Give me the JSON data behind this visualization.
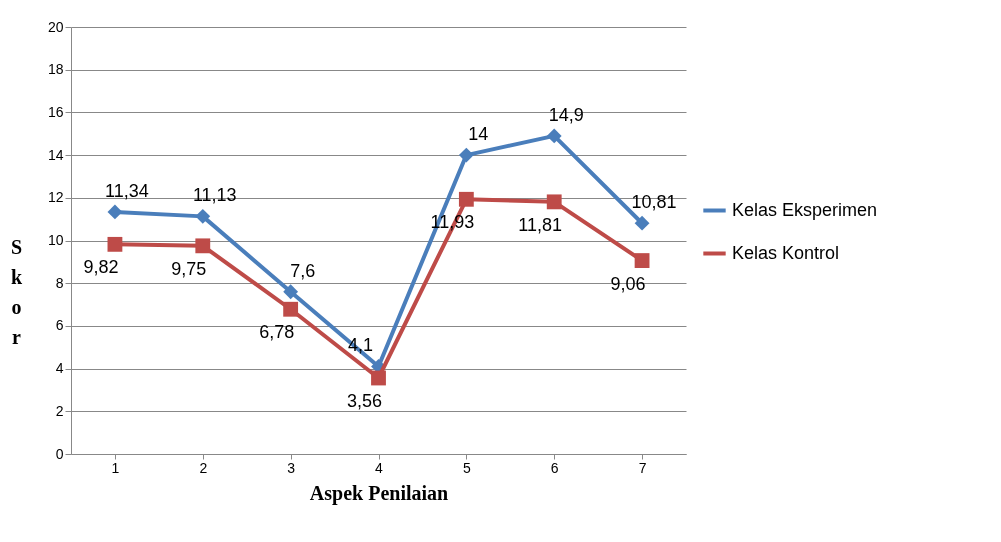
{
  "chart_data": {
    "type": "line",
    "xlabel": "Aspek Penilaian",
    "ylabel": "Skor",
    "categories": [
      "1",
      "2",
      "3",
      "4",
      "5",
      "6",
      "7"
    ],
    "series": [
      {
        "name": "Kelas Eksperimen",
        "color": "#4a7ebb",
        "marker": "diamond",
        "values": [
          11.34,
          11.13,
          7.6,
          4.1,
          14,
          14.9,
          10.81
        ],
        "value_labels": [
          "11,34",
          "11,13",
          "7,6",
          "4,1",
          "14",
          "14,9",
          "10,81"
        ]
      },
      {
        "name": "Kelas Kontrol",
        "color": "#be4b48",
        "marker": "square",
        "values": [
          9.82,
          9.75,
          6.78,
          3.56,
          11.93,
          11.81,
          9.06
        ],
        "value_labels": [
          "9,82",
          "9,75",
          "6,78",
          "3,56",
          "11,93",
          "11,81",
          "9,06"
        ]
      }
    ],
    "ylim": [
      0,
      20
    ],
    "yticks": [
      0,
      2,
      4,
      6,
      8,
      10,
      12,
      14,
      16,
      18,
      20
    ],
    "grid": "y",
    "legend": "right",
    "line_style": "solid"
  }
}
